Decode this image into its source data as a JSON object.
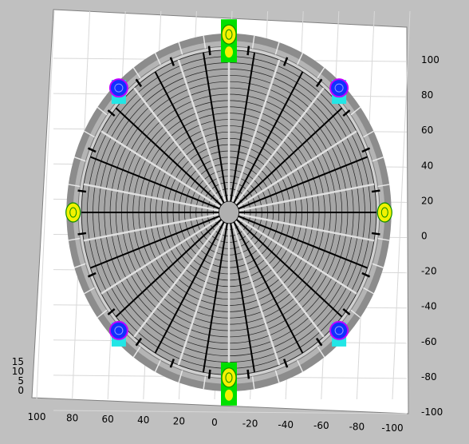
{
  "chart_data": {
    "type": "surface-3d",
    "grid": true,
    "colors": {
      "figure_bg": "#c0c0c0",
      "axes_bg": "#ffffff",
      "grid": "#d8d8d8",
      "surface": "#a6a6a6",
      "wall": "#8c8c8c",
      "mesh": "#000000",
      "module_green": "#00e000",
      "module_yellow": "#f2f200",
      "module_blue": "#1030ff",
      "module_cyan": "#22e6e6",
      "module_magenta": "#c000ff"
    },
    "y_ticks": [
      100,
      80,
      60,
      40,
      20,
      0,
      -20,
      -40,
      -60,
      -80,
      -100
    ],
    "x_ticks": [
      100,
      80,
      60,
      40,
      20,
      0,
      -20,
      -40,
      -60,
      -80,
      -100
    ],
    "z_ticks": [
      15,
      10,
      5,
      0
    ],
    "xlim": [
      -100,
      100
    ],
    "ylim": [
      -100,
      100
    ],
    "zlim": [
      0,
      18
    ],
    "structure": {
      "inner_radius": 88,
      "outer_radius": 97,
      "hub_radius": 6,
      "radial_spokes": 36,
      "rings": 24,
      "ring_wall_segments": 40,
      "modules_at_angles_deg": [
        90,
        45,
        0,
        -45,
        -90,
        -135,
        180,
        135
      ]
    }
  }
}
